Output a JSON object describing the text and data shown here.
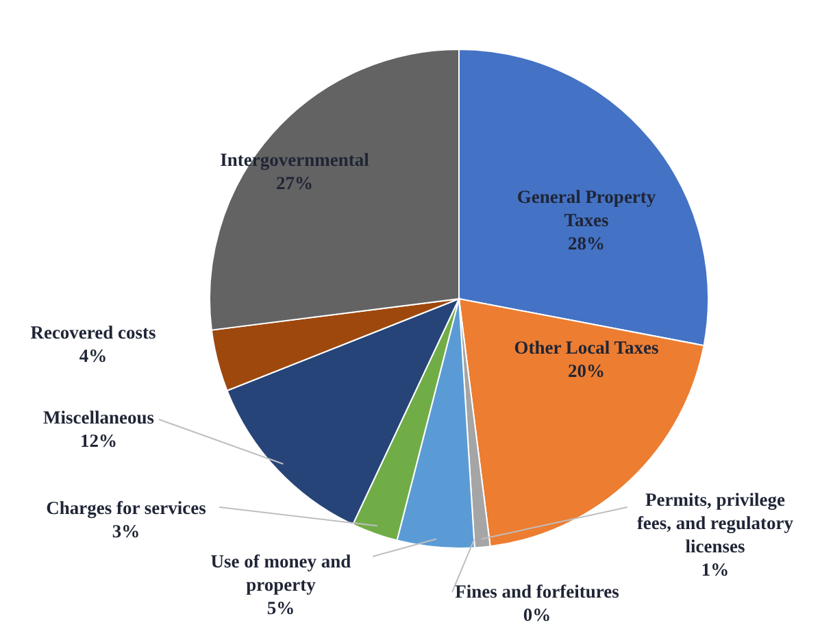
{
  "chart_data": {
    "type": "pie",
    "categories": [
      "General Property Taxes",
      "Other Local Taxes",
      "Permits, privilege fees, and regulatory licenses",
      "Fines and forfeitures",
      "Use of money and property",
      "Charges for services",
      "Miscellaneous",
      "Recovered costs",
      "Intergovernmental"
    ],
    "values": [
      28,
      20,
      1,
      0,
      5,
      3,
      12,
      4,
      27
    ],
    "value_labels": [
      "28%",
      "20%",
      "1%",
      "0%",
      "5%",
      "3%",
      "12%",
      "4%",
      "27%"
    ],
    "colors": [
      "#4472c4",
      "#ed7d31",
      "#a5a5a5",
      "#ffc000",
      "#5b9bd5",
      "#70ad47",
      "#264478",
      "#9e480e",
      "#636363"
    ],
    "legend": false
  }
}
